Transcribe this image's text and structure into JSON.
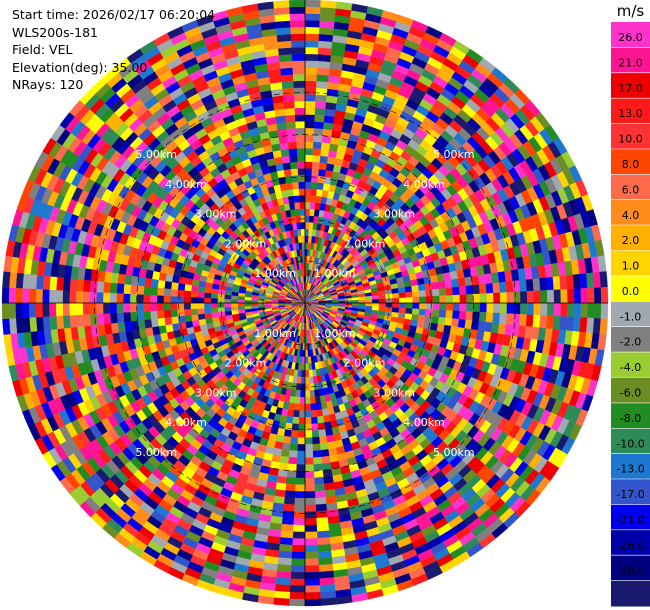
{
  "info": {
    "start_time": "Start time: 2026/02/17 06:20:04",
    "instrument": "WLS200s-181",
    "field": "Field: VEL",
    "elevation": "Elevation(deg): 35.00",
    "nrays": "NRays: 120"
  },
  "chart_data": {
    "type": "heatmap",
    "title": "",
    "field": "VEL",
    "nrays": 120,
    "n_range_gates": 45,
    "max_range_km": 7.2,
    "range_ring_labels": [
      "1.00km",
      "2.00km",
      "3.00km",
      "4.00km",
      "5.00km"
    ],
    "range_ring_values_km": [
      1,
      2,
      3,
      4,
      5
    ],
    "colorbar": {
      "unit": "m/s",
      "tick_labels": [
        "26.0",
        "21.0",
        "17.0",
        "13.0",
        "10.0",
        "8.0",
        "6.0",
        "4.0",
        "2.0",
        "1.0",
        "0.0",
        "-1.0",
        "-2.0",
        "-4.0",
        "-6.0",
        "-8.0",
        "-10.0",
        "-13.0",
        "-17.0",
        "-21.0",
        "-26.0",
        "-30.0"
      ],
      "colors": [
        "#ff33cc",
        "#ff1493",
        "#ee0000",
        "#ff1a1a",
        "#ff3333",
        "#ff4500",
        "#ff6a4a",
        "#ff8c1a",
        "#ffb000",
        "#ffd400",
        "#ffff00",
        "#a0a8b0",
        "#808080",
        "#9acd32",
        "#6b8e23",
        "#228b22",
        "#2e8b57",
        "#1e78d0",
        "#3355cc",
        "#0000ee",
        "#0000aa",
        "#000080",
        "#191970"
      ]
    }
  }
}
